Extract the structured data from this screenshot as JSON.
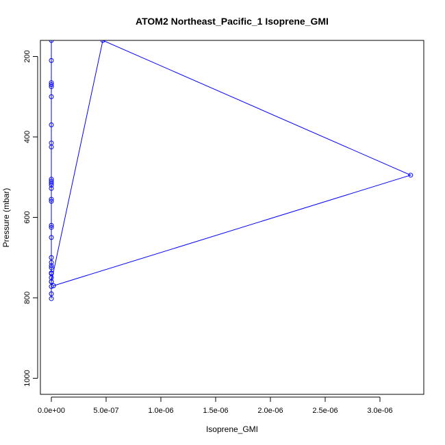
{
  "chart_data": {
    "type": "line",
    "title": "ATOM2 Northeast_Pacific_1 Isoprene_GMI",
    "xlabel": "Isoprene_GMI",
    "ylabel": "Pressure (mbar)",
    "xlim": [
      -1e-07,
      3.4e-06
    ],
    "ylim": [
      1040,
      160
    ],
    "y_axis_reversed": true,
    "grid": false,
    "marker": "open-circle",
    "x_ticks": [
      {
        "value": 0,
        "label": "0.0e+00"
      },
      {
        "value": 5e-07,
        "label": "5.0e-07"
      },
      {
        "value": 1e-06,
        "label": "1.0e-06"
      },
      {
        "value": 1.5e-06,
        "label": "1.5e-06"
      },
      {
        "value": 2e-06,
        "label": "2.0e-06"
      },
      {
        "value": 2.5e-06,
        "label": "2.5e-06"
      },
      {
        "value": 3e-06,
        "label": "3.0e-06"
      }
    ],
    "y_ticks": [
      {
        "value": 200,
        "label": "200"
      },
      {
        "value": 400,
        "label": "400"
      },
      {
        "value": 600,
        "label": "600"
      },
      {
        "value": 800,
        "label": "800"
      },
      {
        "value": 1000,
        "label": "1000"
      }
    ],
    "series": [
      {
        "color": "#0000ff",
        "points": [
          {
            "x": 0,
            "y": 802
          },
          {
            "x": 0,
            "y": 790
          },
          {
            "x": 0,
            "y": 772
          },
          {
            "x": 0,
            "y": 760
          },
          {
            "x": 0,
            "y": 750
          },
          {
            "x": 0,
            "y": 738
          },
          {
            "x": 0,
            "y": 725
          },
          {
            "x": 0,
            "y": 712
          },
          {
            "x": 0,
            "y": 700
          },
          {
            "x": 0,
            "y": 650
          },
          {
            "x": 0,
            "y": 625
          },
          {
            "x": 0,
            "y": 560
          },
          {
            "x": 0,
            "y": 555
          },
          {
            "x": 0,
            "y": 528
          },
          {
            "x": 0,
            "y": 520
          },
          {
            "x": 0,
            "y": 515
          },
          {
            "x": 0,
            "y": 510
          },
          {
            "x": 0,
            "y": 505
          },
          {
            "x": 0,
            "y": 425
          },
          {
            "x": 0,
            "y": 415
          },
          {
            "x": 0,
            "y": 370
          },
          {
            "x": 0,
            "y": 275
          },
          {
            "x": 0,
            "y": 270
          },
          {
            "x": 0,
            "y": 160
          },
          {
            "x": 0,
            "y": 265
          },
          {
            "x": 0,
            "y": 620
          },
          {
            "x": 0,
            "y": 740
          },
          {
            "x": 0,
            "y": 210
          },
          {
            "x": 0,
            "y": 720
          },
          {
            "x": 0,
            "y": 300
          },
          {
            "x": 0,
            "y": 760
          },
          {
            "x": 4.7e-07,
            "y": 160
          },
          {
            "x": 3.28e-06,
            "y": 495
          },
          {
            "x": 2e-08,
            "y": 770
          }
        ]
      }
    ]
  }
}
